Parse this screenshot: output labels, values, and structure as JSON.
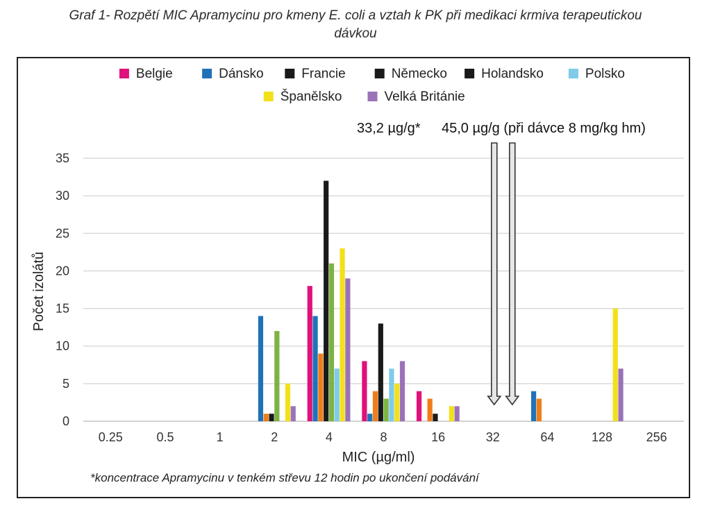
{
  "title_line1": "Graf 1- Rozpětí MIC Apramycinu pro kmeny E. coli a vztah k PK při medikaci krmiva terapeutickou",
  "title_line2": "dávkou",
  "chart_data": {
    "type": "bar",
    "title": "Graf 1- Rozpětí MIC Apramycinu pro kmeny E. coli a vztah k PK při medikaci krmiva terapeutickou dávkou",
    "xlabel": "MIC (µg/ml)",
    "ylabel": "Počet izolátů",
    "ylim": [
      0,
      35
    ],
    "yticks": [
      0,
      5,
      10,
      15,
      20,
      25,
      30,
      35
    ],
    "grid": true,
    "legend_position": "top",
    "categories": [
      "0.25",
      "0.5",
      "1",
      "2",
      "4",
      "8",
      "16",
      "32",
      "64",
      "128",
      "256"
    ],
    "series": [
      {
        "name": "Belgie",
        "color": "#e0117a",
        "values": [
          0,
          0,
          0,
          0,
          18,
          8,
          4,
          0,
          0,
          0,
          0
        ]
      },
      {
        "name": "Dánsko",
        "color": "#1f72b8",
        "values": [
          0,
          0,
          0,
          14,
          14,
          1,
          0,
          0,
          4,
          0,
          0
        ]
      },
      {
        "name": "Francie",
        "color": "#ef7d1a",
        "values": [
          0,
          0,
          0,
          1,
          9,
          4,
          3,
          0,
          3,
          0,
          0
        ]
      },
      {
        "name": "Německo",
        "color": "#1a1a1a",
        "values": [
          0,
          0,
          0,
          1,
          32,
          13,
          1,
          0,
          0,
          0,
          0
        ]
      },
      {
        "name": "Holandsko",
        "color": "#7cb342",
        "values": [
          0,
          0,
          0,
          12,
          21,
          3,
          0,
          0,
          0,
          0,
          0
        ]
      },
      {
        "name": "Polsko",
        "color": "#7fcbe8",
        "values": [
          0,
          0,
          0,
          0,
          7,
          7,
          0,
          0,
          0,
          0,
          0
        ]
      },
      {
        "name": "Španělsko",
        "color": "#f2e11a",
        "values": [
          0,
          0,
          0,
          5,
          23,
          5,
          2,
          0,
          0,
          15,
          0
        ]
      },
      {
        "name": "Velká Británie",
        "color": "#9b72b8",
        "values": [
          0,
          0,
          0,
          2,
          19,
          8,
          2,
          0,
          0,
          7,
          0
        ]
      }
    ],
    "legend_swatch_colors": [
      "#e0117a",
      "#1f72b8",
      "#1a1a1a",
      "#1a1a1a",
      "#1a1a1a",
      "#7fcbe8",
      "#f2e11a",
      "#9b72b8"
    ],
    "annotations": {
      "arrow_label_1": "33,2 µg/g*",
      "arrow_label_2": "45,0 µg/g (při dávce 8 mg/kg hm)",
      "arrow_1_x": "32",
      "arrow_2_x": "32",
      "footnote": "*koncentrace Apramycinu v tenkém střevu 12 hodin po ukončení podávání"
    }
  }
}
